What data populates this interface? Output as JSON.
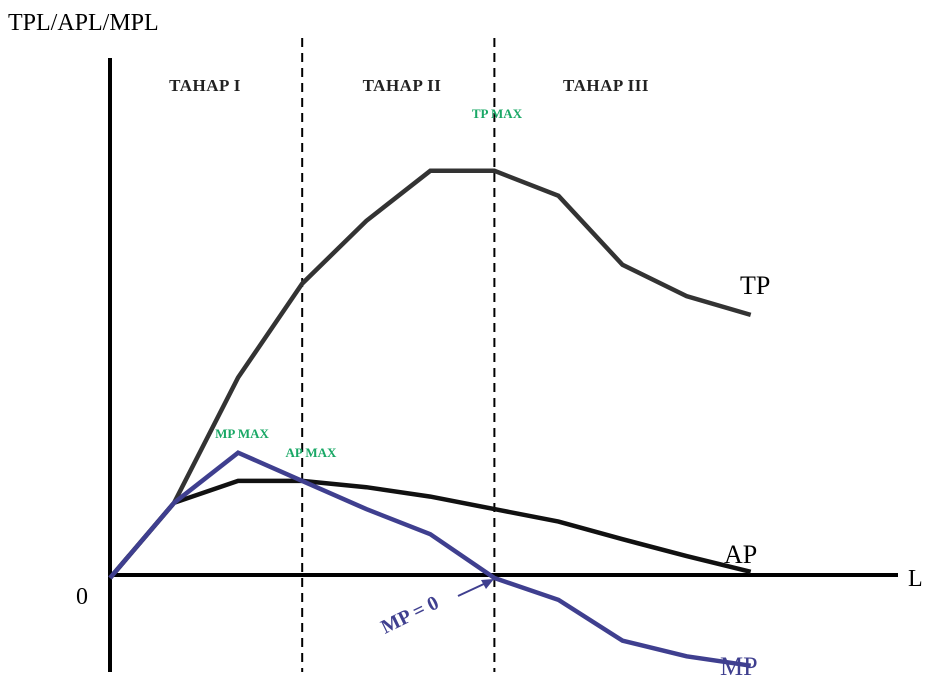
{
  "chart_data": {
    "type": "line",
    "title": "",
    "ylabel": "TPL/APL/MPL",
    "xlabel": "L",
    "origin_label": "0",
    "xlim": [
      0,
      12.3
    ],
    "ylim": [
      -1.5,
      8.3
    ],
    "x": [
      0,
      1,
      2,
      3,
      4,
      5,
      6,
      7,
      8,
      9,
      10
    ],
    "series": [
      {
        "name": "TP",
        "color": "#333333",
        "values": [
          0,
          1.2,
          3.2,
          4.7,
          5.7,
          6.5,
          6.5,
          6.1,
          5.0,
          4.5,
          4.2
        ]
      },
      {
        "name": "AP",
        "color": "#111111",
        "values": [
          0,
          1.2,
          1.55,
          1.55,
          1.45,
          1.3,
          1.1,
          0.9,
          0.62,
          0.35,
          0.1
        ]
      },
      {
        "name": "MP",
        "color": "#3f3f8f",
        "values": [
          0,
          1.2,
          2.0,
          1.55,
          1.1,
          0.7,
          0.0,
          -0.35,
          -1.0,
          -1.25,
          -1.4
        ]
      }
    ],
    "stage_boundaries": [
      3,
      6
    ],
    "stages": [
      "TAHAP I",
      "TAHAP II",
      "TAHAP III"
    ],
    "annotations": [
      {
        "text": "TP MAX",
        "x": 6,
        "y": 6.5,
        "color": "#1aa866"
      },
      {
        "text": "MP MAX",
        "x": 2,
        "y": 2.0,
        "color": "#1aa866"
      },
      {
        "text": "AP MAX",
        "x": 3,
        "y": 1.55,
        "color": "#1aa866"
      },
      {
        "text": "MP = 0",
        "x": 6,
        "y": 0.0,
        "color": "#3f3f8f"
      }
    ],
    "grid": false,
    "legend": "none"
  }
}
